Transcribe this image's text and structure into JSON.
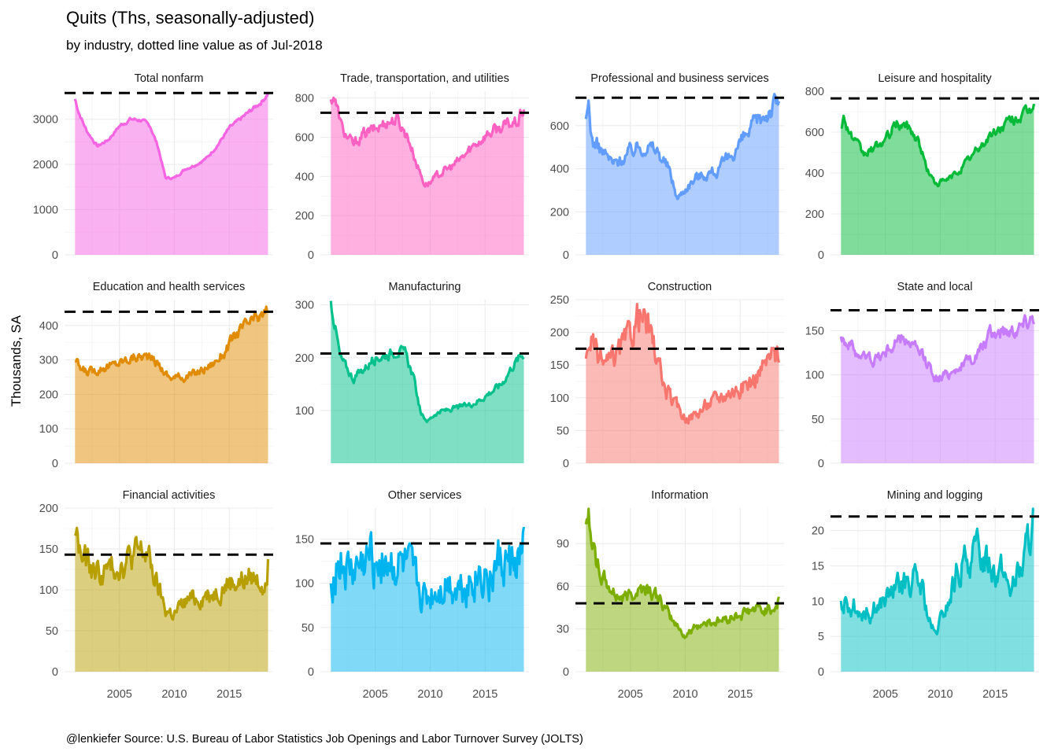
{
  "chart_data": {
    "type": "area",
    "title": "Quits (Ths, seasonally-adjusted)",
    "subtitle": "by industry, dotted line value as of Jul-2018",
    "ylabel": "Thousands, SA",
    "caption": "@lenkiefer Source: U.S. Bureau of Labor Statistics Job Openings and Labor Turnover Survey (JOLTS)",
    "x_ticks": [
      2005,
      2010,
      2015
    ],
    "x_range": [
      2000,
      2019
    ],
    "panels": [
      {
        "name": "Total nonfarm",
        "color": "#F564E3",
        "ylim": [
          0,
          3620
        ],
        "yticks": [
          0,
          1000,
          2000,
          3000
        ],
        "reference": 3580,
        "noise": 0.012,
        "points": [
          [
            2000.95,
            3450
          ],
          [
            2001.3,
            3150
          ],
          [
            2002,
            2750
          ],
          [
            2003,
            2400
          ],
          [
            2004,
            2550
          ],
          [
            2005,
            2850
          ],
          [
            2006,
            3000
          ],
          [
            2007,
            2980
          ],
          [
            2007.8,
            2850
          ],
          [
            2008.5,
            2400
          ],
          [
            2009.2,
            1700
          ],
          [
            2010,
            1700
          ],
          [
            2011,
            1900
          ],
          [
            2012,
            2000
          ],
          [
            2013,
            2150
          ],
          [
            2014,
            2450
          ],
          [
            2015,
            2800
          ],
          [
            2016,
            3000
          ],
          [
            2017,
            3200
          ],
          [
            2018,
            3400
          ],
          [
            2018.55,
            3580
          ]
        ]
      },
      {
        "name": "Trade, transportation, and utilities",
        "color": "#FF61C3",
        "ylim": [
          0,
          835
        ],
        "yticks": [
          0,
          200,
          400,
          600,
          800
        ],
        "reference": 725,
        "noise": 0.04,
        "points": [
          [
            2000.95,
            780
          ],
          [
            2001.2,
            820
          ],
          [
            2002,
            640
          ],
          [
            2003,
            560
          ],
          [
            2004,
            620
          ],
          [
            2005,
            640
          ],
          [
            2006,
            680
          ],
          [
            2007,
            690
          ],
          [
            2008,
            600
          ],
          [
            2008.8,
            460
          ],
          [
            2009.5,
            360
          ],
          [
            2010,
            370
          ],
          [
            2011,
            420
          ],
          [
            2012,
            450
          ],
          [
            2013,
            500
          ],
          [
            2014,
            560
          ],
          [
            2015,
            610
          ],
          [
            2016,
            640
          ],
          [
            2017,
            660
          ],
          [
            2018,
            680
          ],
          [
            2018.55,
            750
          ]
        ]
      },
      {
        "name": "Professional and business services",
        "color": "#619CFF",
        "ylim": [
          0,
          760
        ],
        "yticks": [
          0,
          200,
          400,
          600
        ],
        "reference": 730,
        "noise": 0.06,
        "points": [
          [
            2000.95,
            600
          ],
          [
            2001.2,
            700
          ],
          [
            2001.5,
            530
          ],
          [
            2002.5,
            480
          ],
          [
            2003.5,
            420
          ],
          [
            2004.5,
            460
          ],
          [
            2005.5,
            500
          ],
          [
            2006.5,
            510
          ],
          [
            2007.5,
            480
          ],
          [
            2008.5,
            400
          ],
          [
            2009.3,
            260
          ],
          [
            2010,
            310
          ],
          [
            2011,
            360
          ],
          [
            2012,
            380
          ],
          [
            2013,
            390
          ],
          [
            2014,
            450
          ],
          [
            2015,
            520
          ],
          [
            2016,
            580
          ],
          [
            2017,
            640
          ],
          [
            2018,
            690
          ],
          [
            2018.55,
            720
          ]
        ]
      },
      {
        "name": "Leisure and hospitality",
        "color": "#00BA38",
        "ylim": [
          0,
          800
        ],
        "yticks": [
          0,
          200,
          400,
          600,
          800
        ],
        "reference": 765,
        "noise": 0.035,
        "points": [
          [
            2000.95,
            640
          ],
          [
            2001.2,
            670
          ],
          [
            2002,
            570
          ],
          [
            2003,
            490
          ],
          [
            2004,
            520
          ],
          [
            2005,
            560
          ],
          [
            2006,
            640
          ],
          [
            2007,
            630
          ],
          [
            2008,
            560
          ],
          [
            2008.8,
            420
          ],
          [
            2009.5,
            350
          ],
          [
            2010.5,
            360
          ],
          [
            2011.5,
            400
          ],
          [
            2012.5,
            460
          ],
          [
            2013.5,
            520
          ],
          [
            2014.5,
            580
          ],
          [
            2015.5,
            620
          ],
          [
            2016.5,
            660
          ],
          [
            2017.5,
            680
          ],
          [
            2018.2,
            700
          ],
          [
            2018.55,
            760
          ]
        ]
      },
      {
        "name": "Education and health services",
        "color": "#E08B00",
        "ylim": [
          0,
          475
        ],
        "yticks": [
          0,
          100,
          200,
          300,
          400
        ],
        "reference": 440,
        "noise": 0.04,
        "points": [
          [
            2000.95,
            300
          ],
          [
            2001.5,
            270
          ],
          [
            2002.5,
            265
          ],
          [
            2003.5,
            280
          ],
          [
            2004.5,
            285
          ],
          [
            2005.5,
            300
          ],
          [
            2006.5,
            310
          ],
          [
            2007.5,
            310
          ],
          [
            2008.5,
            290
          ],
          [
            2009.5,
            250
          ],
          [
            2010.5,
            250
          ],
          [
            2011.5,
            255
          ],
          [
            2012.5,
            270
          ],
          [
            2013.5,
            290
          ],
          [
            2014.5,
            320
          ],
          [
            2015.5,
            370
          ],
          [
            2016.5,
            400
          ],
          [
            2017.5,
            420
          ],
          [
            2018.2,
            430
          ],
          [
            2018.55,
            455
          ]
        ]
      },
      {
        "name": "Manufacturing",
        "color": "#00C08B",
        "ylim": [
          0,
          310
        ],
        "yticks": [
          100,
          200,
          300
        ],
        "reference": 208,
        "noise": 0.04,
        "points": [
          [
            2000.95,
            305
          ],
          [
            2001.2,
            280
          ],
          [
            2001.8,
            200
          ],
          [
            2003,
            160
          ],
          [
            2004,
            180
          ],
          [
            2005,
            200
          ],
          [
            2006,
            205
          ],
          [
            2007,
            215
          ],
          [
            2007.8,
            205
          ],
          [
            2008.5,
            160
          ],
          [
            2009.2,
            90
          ],
          [
            2009.8,
            80
          ],
          [
            2010.5,
            95
          ],
          [
            2011.5,
            100
          ],
          [
            2012.5,
            105
          ],
          [
            2013.5,
            110
          ],
          [
            2014.5,
            120
          ],
          [
            2015.5,
            135
          ],
          [
            2016.5,
            150
          ],
          [
            2017.5,
            185
          ],
          [
            2018.55,
            210
          ]
        ]
      },
      {
        "name": "Construction",
        "color": "#F8766D",
        "ylim": [
          0,
          250
        ],
        "yticks": [
          0,
          50,
          100,
          150,
          200,
          250
        ],
        "reference": 175,
        "noise": 0.1,
        "points": [
          [
            2000.95,
            150
          ],
          [
            2001.3,
            195
          ],
          [
            2002,
            160
          ],
          [
            2003,
            150
          ],
          [
            2004,
            170
          ],
          [
            2005,
            195
          ],
          [
            2005.8,
            230
          ],
          [
            2006.5,
            210
          ],
          [
            2007.3,
            170
          ],
          [
            2008,
            120
          ],
          [
            2009,
            90
          ],
          [
            2010,
            70
          ],
          [
            2011,
            75
          ],
          [
            2012,
            90
          ],
          [
            2013,
            100
          ],
          [
            2014,
            110
          ],
          [
            2015,
            115
          ],
          [
            2016,
            125
          ],
          [
            2017,
            145
          ],
          [
            2018,
            165
          ],
          [
            2018.55,
            172
          ]
        ]
      },
      {
        "name": "State and local",
        "color": "#C77CFF",
        "ylim": [
          0,
          185
        ],
        "yticks": [
          0,
          50,
          100,
          150
        ],
        "reference": 173,
        "noise": 0.05,
        "points": [
          [
            2000.95,
            150
          ],
          [
            2001.3,
            140
          ],
          [
            2002,
            130
          ],
          [
            2003,
            120
          ],
          [
            2004,
            118
          ],
          [
            2005,
            125
          ],
          [
            2006,
            138
          ],
          [
            2007,
            140
          ],
          [
            2008,
            125
          ],
          [
            2009,
            110
          ],
          [
            2009.7,
            95
          ],
          [
            2010.5,
            100
          ],
          [
            2011.5,
            108
          ],
          [
            2012.5,
            115
          ],
          [
            2013.5,
            125
          ],
          [
            2014.5,
            145
          ],
          [
            2015.5,
            150
          ],
          [
            2016.5,
            152
          ],
          [
            2017.5,
            158
          ],
          [
            2018.55,
            170
          ]
        ]
      },
      {
        "name": "Financial activities",
        "color": "#B79F00",
        "ylim": [
          0,
          200
        ],
        "yticks": [
          0,
          50,
          100,
          150,
          200
        ],
        "reference": 143,
        "noise": 0.11,
        "points": [
          [
            2000.95,
            175
          ],
          [
            2001.5,
            140
          ],
          [
            2002.5,
            125
          ],
          [
            2003.5,
            120
          ],
          [
            2004.5,
            130
          ],
          [
            2005.5,
            135
          ],
          [
            2006.5,
            145
          ],
          [
            2007.5,
            145
          ],
          [
            2008.3,
            110
          ],
          [
            2009.2,
            75
          ],
          [
            2010,
            70
          ],
          [
            2011,
            85
          ],
          [
            2012,
            90
          ],
          [
            2013,
            95
          ],
          [
            2014,
            100
          ],
          [
            2015,
            110
          ],
          [
            2016,
            110
          ],
          [
            2017,
            115
          ],
          [
            2018.2,
            110
          ],
          [
            2018.55,
            140
          ]
        ]
      },
      {
        "name": "Other services",
        "color": "#00B4F0",
        "ylim": [
          0,
          185
        ],
        "yticks": [
          0,
          50,
          100,
          150
        ],
        "reference": 145,
        "noise": 0.2,
        "points": [
          [
            2000.95,
            100
          ],
          [
            2001.5,
            125
          ],
          [
            2002.5,
            110
          ],
          [
            2003.5,
            115
          ],
          [
            2004.5,
            125
          ],
          [
            2005.5,
            135
          ],
          [
            2006.5,
            120
          ],
          [
            2007.5,
            115
          ],
          [
            2008.5,
            100
          ],
          [
            2009.5,
            80
          ],
          [
            2010.5,
            90
          ],
          [
            2011.5,
            100
          ],
          [
            2012.5,
            95
          ],
          [
            2013.5,
            100
          ],
          [
            2014.5,
            110
          ],
          [
            2015.5,
            110
          ],
          [
            2016.5,
            120
          ],
          [
            2017.5,
            115
          ],
          [
            2018.55,
            130
          ]
        ]
      },
      {
        "name": "Information",
        "color": "#7CAE00",
        "ylim": [
          0,
          115
        ],
        "yticks": [
          0,
          30,
          60,
          90
        ],
        "reference": 48,
        "noise": 0.08,
        "points": [
          [
            2000.95,
            100
          ],
          [
            2001.2,
            110
          ],
          [
            2001.8,
            80
          ],
          [
            2002.5,
            65
          ],
          [
            2003.5,
            55
          ],
          [
            2004.5,
            52
          ],
          [
            2005.5,
            58
          ],
          [
            2006.5,
            60
          ],
          [
            2007.5,
            52
          ],
          [
            2008.5,
            40
          ],
          [
            2009.5,
            30
          ],
          [
            2010,
            25
          ],
          [
            2011,
            32
          ],
          [
            2012,
            35
          ],
          [
            2013,
            35
          ],
          [
            2014,
            38
          ],
          [
            2015,
            40
          ],
          [
            2016,
            43
          ],
          [
            2017,
            43
          ],
          [
            2018,
            45
          ],
          [
            2018.55,
            50
          ]
        ]
      },
      {
        "name": "Mining and logging",
        "color": "#00BFC4",
        "ylim": [
          0,
          23.2
        ],
        "yticks": [
          0,
          5,
          10,
          15,
          20
        ],
        "reference": 22,
        "noise": 0.13,
        "points": [
          [
            2000.95,
            9
          ],
          [
            2001.5,
            10
          ],
          [
            2002.5,
            9
          ],
          [
            2003.5,
            8.5
          ],
          [
            2004.5,
            9.5
          ],
          [
            2005.5,
            11
          ],
          [
            2006.5,
            12
          ],
          [
            2007.5,
            13
          ],
          [
            2008.3,
            12
          ],
          [
            2009,
            7
          ],
          [
            2009.5,
            5
          ],
          [
            2010,
            7
          ],
          [
            2010.8,
            10
          ],
          [
            2011.5,
            14
          ],
          [
            2012.5,
            16
          ],
          [
            2013.5,
            17
          ],
          [
            2014.5,
            16
          ],
          [
            2015.5,
            14
          ],
          [
            2016.5,
            12
          ],
          [
            2017.5,
            15
          ],
          [
            2018.2,
            20
          ],
          [
            2018.55,
            22
          ]
        ]
      }
    ]
  }
}
